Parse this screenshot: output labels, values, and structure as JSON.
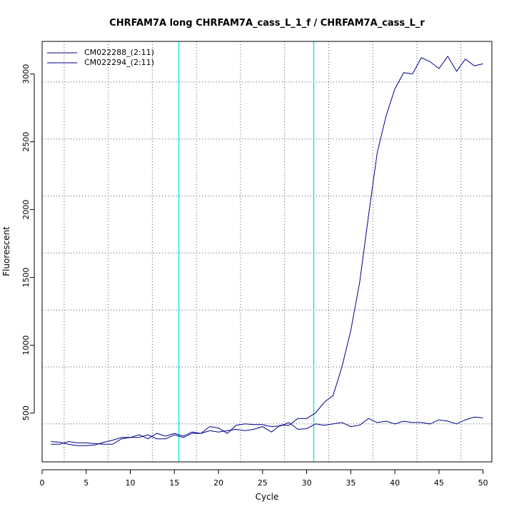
{
  "chart_data": {
    "type": "line",
    "title": "CHRFAM7A long CHRFAM7A_cass_L_1_f / CHRFAM7A_cass_L_r",
    "xlabel": "Cycle",
    "ylabel": "Fluorescent",
    "xlim": [
      0,
      51
    ],
    "ylim": [
      140,
      3240
    ],
    "x_ticks": [
      0,
      5,
      10,
      15,
      20,
      25,
      30,
      35,
      40,
      45,
      50
    ],
    "y_ticks": [
      500,
      1000,
      1500,
      2000,
      2500,
      3000
    ],
    "v_grid_x": [
      2.5,
      7.5,
      12.5,
      17.5,
      22.5,
      27.5,
      32.5,
      37.5,
      42.5,
      47.5
    ],
    "h_grid_y": [
      420,
      840,
      1260,
      1680,
      2100,
      2520,
      2940
    ],
    "threshold_lines_x": [
      15.5,
      30.8
    ],
    "threshold_color": "#00e5ee",
    "grid": true,
    "legend_position": "top-left",
    "x": [
      1,
      2,
      3,
      4,
      5,
      6,
      7,
      8,
      9,
      10,
      11,
      12,
      13,
      14,
      15,
      16,
      17,
      18,
      19,
      20,
      21,
      22,
      23,
      24,
      25,
      26,
      27,
      28,
      29,
      30,
      31,
      32,
      33,
      34,
      35,
      36,
      37,
      38,
      39,
      40,
      41,
      42,
      43,
      44,
      45,
      46,
      47,
      48,
      49,
      50
    ],
    "series": [
      {
        "name": "CM022288_(2:11)",
        "color": "#00008b",
        "values": [
          270,
          270,
          290,
          280,
          280,
          275,
          270,
          270,
          310,
          320,
          340,
          310,
          350,
          330,
          350,
          330,
          360,
          350,
          400,
          390,
          350,
          410,
          420,
          415,
          415,
          400,
          405,
          430,
          380,
          385,
          420,
          410,
          420,
          430,
          400,
          410,
          460,
          430,
          440,
          420,
          440,
          430,
          430,
          420,
          450,
          440,
          420,
          450,
          470,
          465
        ]
      },
      {
        "name": "CM022294_(2:11)",
        "color": "#00008b",
        "values": [
          290,
          285,
          270,
          260,
          260,
          265,
          285,
          300,
          320,
          320,
          320,
          340,
          310,
          310,
          340,
          320,
          350,
          350,
          370,
          360,
          370,
          380,
          370,
          380,
          400,
          360,
          410,
          410,
          460,
          460,
          500,
          580,
          630,
          840,
          1110,
          1460,
          1950,
          2420,
          2690,
          2890,
          3010,
          3000,
          3120,
          3090,
          3040,
          3130,
          3020,
          3110,
          3060,
          3075
        ]
      }
    ]
  }
}
